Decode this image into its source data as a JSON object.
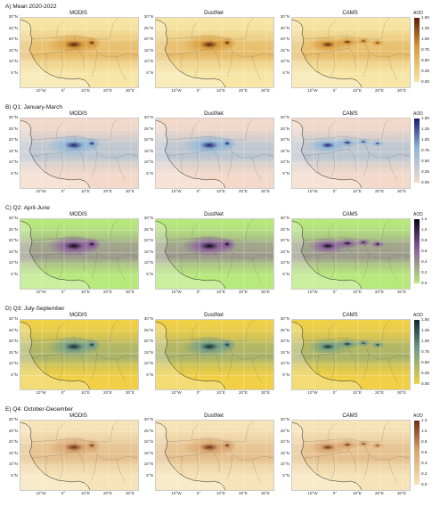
{
  "panels": [
    "MODIS",
    "DustNet",
    "CAMS"
  ],
  "legend_title": "AOD",
  "lat_labels": [
    "30°N",
    "25°N",
    "20°N",
    "15°N",
    "10°N",
    "5°N"
  ],
  "lon_labels": [
    "10°W",
    "0°",
    "10°E",
    "20°E",
    "30°E"
  ],
  "rows": [
    {
      "title": "A) Mean 2020-2022",
      "colormap": "brown",
      "colors": {
        "low": "#f7e6a6",
        "mid": "#d99a3a",
        "high": "#5b1e08"
      },
      "ticks": [
        "1.50",
        "1.25",
        "1.00",
        "0.75",
        "0.50",
        "0.25",
        "0.00"
      ]
    },
    {
      "title": "B) Q1: January-March",
      "colormap": "blue",
      "colors": {
        "low": "#f4d9c9",
        "mid": "#8bb5d8",
        "high": "#1c1a6e"
      },
      "ticks": [
        "1.50",
        "1.25",
        "1.00",
        "0.75",
        "0.50",
        "0.25",
        "0.00"
      ]
    },
    {
      "title": "C) Q2: April-June",
      "colormap": "purple",
      "colors": {
        "low": "#b7e97c",
        "mid": "#8a5a9e",
        "high": "#0a0512"
      },
      "ticks": [
        "1.2",
        "1.0",
        "0.8",
        "0.6",
        "0.4",
        "0.2",
        "0.0"
      ]
    },
    {
      "title": "D) Q3: July-September",
      "colormap": "teal",
      "colors": {
        "low": "#f1d046",
        "mid": "#6f9c89",
        "high": "#0c2a32"
      },
      "ticks": [
        "1.50",
        "1.25",
        "1.00",
        "0.75",
        "0.50",
        "0.25",
        "0.00"
      ]
    },
    {
      "title": "E) Q4: October-December",
      "colormap": "tan",
      "colors": {
        "low": "#f6e4b8",
        "mid": "#d7a26b",
        "high": "#6e2a14"
      },
      "ticks": [
        "1.2",
        "1.0",
        "0.8",
        "0.6",
        "0.4",
        "0.2",
        "0.0"
      ]
    }
  ]
}
